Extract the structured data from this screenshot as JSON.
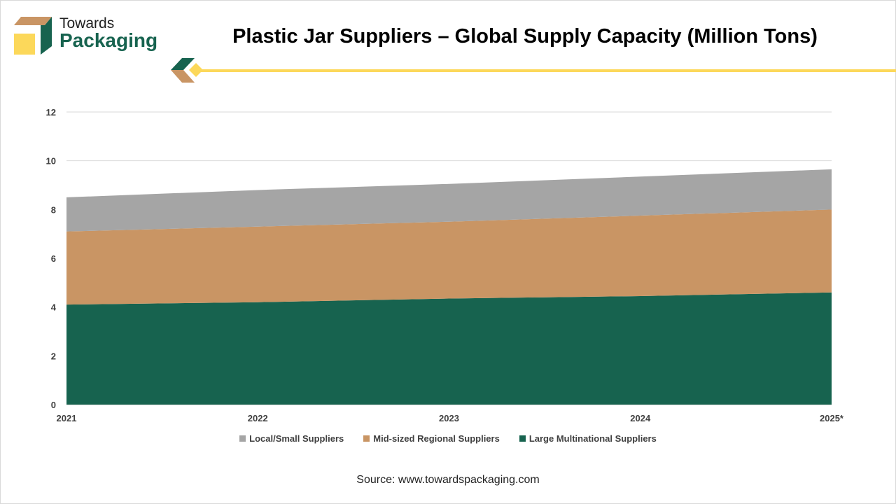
{
  "brand": {
    "line1": "Towards",
    "line2": "Packaging"
  },
  "header": {
    "title": "Plastic Jar Suppliers – Global Supply Capacity (Million Tons)"
  },
  "colors": {
    "green": "#17634f",
    "tan": "#c99564",
    "gray": "#a5a5a5",
    "yellow": "#fcd85a"
  },
  "chart_data": {
    "type": "area",
    "stacked": true,
    "title": "Plastic Jar Suppliers – Global Supply Capacity (Million Tons)",
    "xlabel": "",
    "ylabel": "",
    "categories": [
      "2021",
      "2022",
      "2023",
      "2024",
      "2025*"
    ],
    "ylim": [
      0,
      12
    ],
    "yticks": [
      "0",
      "2",
      "4",
      "6",
      "8",
      "10",
      "12"
    ],
    "grid": true,
    "legend_position": "bottom",
    "series": [
      {
        "name": "Large Multinational Suppliers",
        "color": "#17634f",
        "values": [
          4.1,
          4.2,
          4.35,
          4.45,
          4.6
        ]
      },
      {
        "name": "Mid-sized Regional Suppliers",
        "color": "#c99564",
        "values": [
          3.0,
          3.1,
          3.15,
          3.3,
          3.4
        ]
      },
      {
        "name": "Local/Small Suppliers",
        "color": "#a5a5a5",
        "values": [
          1.4,
          1.5,
          1.55,
          1.6,
          1.65
        ]
      }
    ],
    "legend": [
      "Local/Small Suppliers",
      "Mid-sized Regional Suppliers",
      "Large Multinational Suppliers"
    ]
  },
  "source": "Source: www.towardspackaging.com"
}
